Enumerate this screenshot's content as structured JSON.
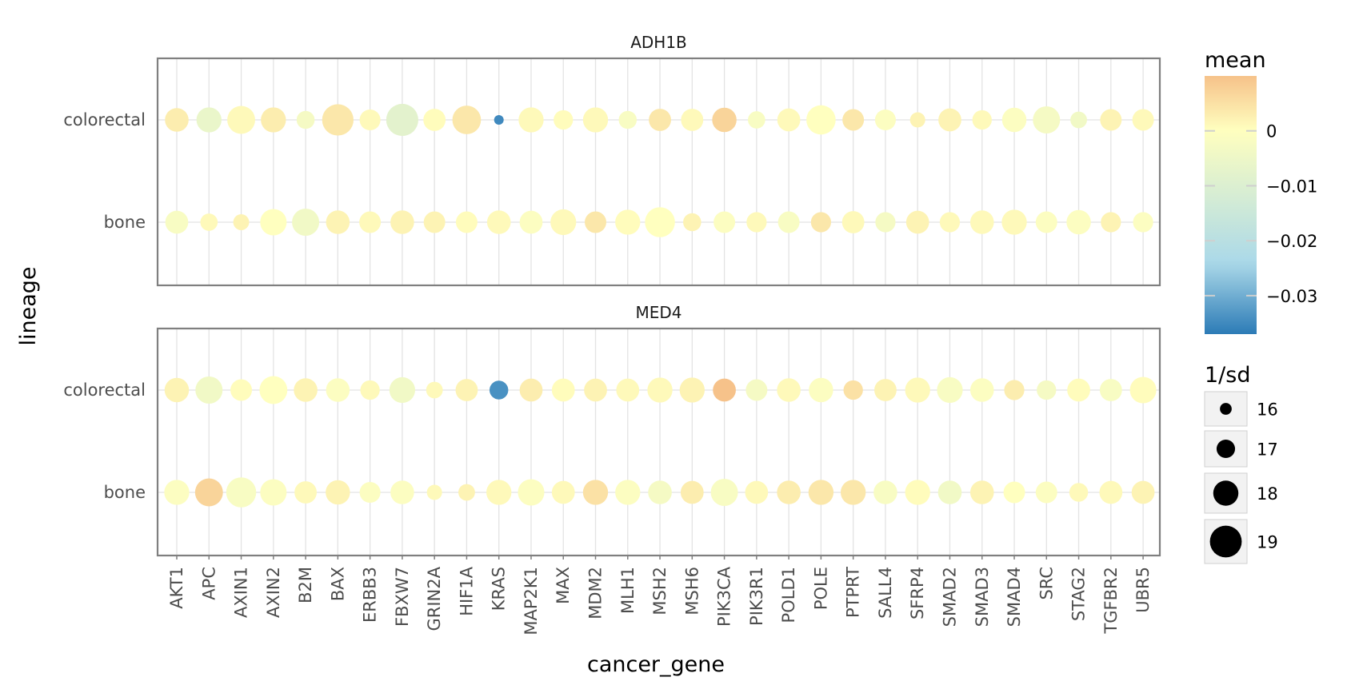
{
  "chart_data": {
    "type": "scatter",
    "x_label": "cancer_gene",
    "y_label": "lineage",
    "genes": [
      "AKT1",
      "APC",
      "AXIN1",
      "AXIN2",
      "B2M",
      "BAX",
      "ERBB3",
      "FBXW7",
      "GRIN2A",
      "HIF1A",
      "KRAS",
      "MAP2K1",
      "MAX",
      "MDM2",
      "MLH1",
      "MSH2",
      "MSH6",
      "PIK3CA",
      "PIK3R1",
      "POLD1",
      "POLE",
      "PTPRT",
      "SALL4",
      "SFRP4",
      "SMAD2",
      "SMAD3",
      "SMAD4",
      "SRC",
      "STAG2",
      "TGFBR2",
      "UBR5"
    ],
    "lineages": [
      "colorectal",
      "bone"
    ],
    "panels": [
      {
        "title": "ADH1B",
        "rows": [
          {
            "lineage": "colorectal",
            "mean": [
              0.003,
              -0.006,
              0.001,
              0.003,
              -0.003,
              0.004,
              0.001,
              -0.008,
              0.0005,
              0.004,
              -0.035,
              0.001,
              0.0005,
              0.001,
              -0.002,
              0.004,
              0.001,
              0.007,
              -0.002,
              0.001,
              0.0,
              0.004,
              -0.001,
              0.002,
              0.002,
              0.001,
              -0.001,
              -0.003,
              -0.004,
              0.002,
              0.001
            ],
            "inv_sd": [
              17.6,
              17.8,
              18.2,
              17.8,
              16.8,
              18.7,
              17.2,
              18.8,
              17.4,
              18.3,
              15.6,
              17.8,
              17.0,
              17.8,
              16.8,
              17.4,
              17.4,
              17.7,
              16.7,
              17.5,
              18.4,
              17.3,
              17.2,
              16.4,
              17.5,
              17.0,
              17.7,
              18.1,
              16.6,
              17.3,
              17.3
            ]
          },
          {
            "lineage": "bone",
            "mean": [
              -0.002,
              0.001,
              0.002,
              0.0,
              -0.004,
              0.002,
              0.001,
              0.002,
              0.002,
              0.0005,
              0.001,
              -0.001,
              0.001,
              0.004,
              0.0005,
              0.0,
              0.002,
              -0.001,
              0.001,
              -0.002,
              0.004,
              0.001,
              -0.003,
              0.002,
              0.001,
              0.001,
              0.001,
              -0.001,
              -0.001,
              0.002,
              -0.001
            ],
            "inv_sd": [
              17.5,
              16.7,
              16.5,
              18.0,
              18.1,
              17.6,
              17.3,
              17.6,
              17.3,
              17.3,
              17.6,
              17.5,
              17.9,
              17.3,
              17.8,
              18.5,
              16.8,
              17.3,
              17.1,
              17.3,
              17.1,
              17.4,
              17.1,
              17.5,
              17.1,
              17.6,
              17.8,
              17.3,
              17.7,
              17.1,
              17.1
            ]
          }
        ]
      },
      {
        "title": "MED4",
        "rows": [
          {
            "lineage": "colorectal",
            "mean": [
              0.002,
              -0.004,
              0.0005,
              0.0,
              0.002,
              -0.001,
              0.001,
              -0.004,
              0.001,
              0.002,
              -0.034,
              0.003,
              0.0005,
              0.002,
              0.001,
              0.001,
              0.002,
              0.011,
              -0.003,
              0.001,
              -0.001,
              0.005,
              0.002,
              0.001,
              -0.002,
              -0.001,
              0.003,
              -0.003,
              0.0005,
              -0.002,
              0.0005
            ],
            "inv_sd": [
              17.7,
              18.1,
              17.3,
              18.2,
              17.6,
              17.6,
              17.0,
              17.9,
              16.6,
              17.4,
              16.9,
              17.5,
              17.5,
              17.5,
              17.5,
              17.8,
              17.8,
              17.5,
              17.3,
              17.6,
              17.7,
              17.0,
              17.4,
              17.8,
              17.9,
              17.6,
              17.1,
              17.0,
              17.5,
              17.4,
              18.0
            ]
          },
          {
            "lineage": "bone",
            "mean": [
              -0.001,
              0.007,
              -0.002,
              -0.001,
              0.001,
              0.002,
              -0.001,
              -0.001,
              0.001,
              0.002,
              0.001,
              -0.001,
              0.001,
              0.005,
              -0.001,
              -0.003,
              0.003,
              -0.002,
              0.001,
              0.003,
              0.004,
              0.004,
              -0.002,
              0.0005,
              -0.004,
              0.002,
              0.0,
              -0.001,
              0.001,
              0.001,
              0.002
            ],
            "inv_sd": [
              17.8,
              18.2,
              18.5,
              18.0,
              17.4,
              17.7,
              17.2,
              17.6,
              16.4,
              16.6,
              17.8,
              18.0,
              17.5,
              17.8,
              17.8,
              17.6,
              17.5,
              18.1,
              17.5,
              17.6,
              17.8,
              17.8,
              17.6,
              17.8,
              17.6,
              17.6,
              17.3,
              17.3,
              16.9,
              17.5,
              17.5
            ]
          }
        ]
      }
    ],
    "colorbar": {
      "title": "mean",
      "range": [
        -0.037,
        0.01
      ],
      "ticks": [
        0,
        -0.01,
        -0.02,
        -0.03
      ],
      "tick_labels": [
        "0",
        "−0.01",
        "−0.02",
        "−0.03"
      ],
      "colors": [
        "#2c7bb6",
        "#abd9e9",
        "#ffffbf",
        "#f6c28a"
      ]
    },
    "size_legend": {
      "title": "1/sd",
      "values": [
        16,
        17,
        18,
        19
      ],
      "labels": [
        "16",
        "17",
        "18",
        "19"
      ]
    },
    "grid": true,
    "legend_position": "right"
  }
}
